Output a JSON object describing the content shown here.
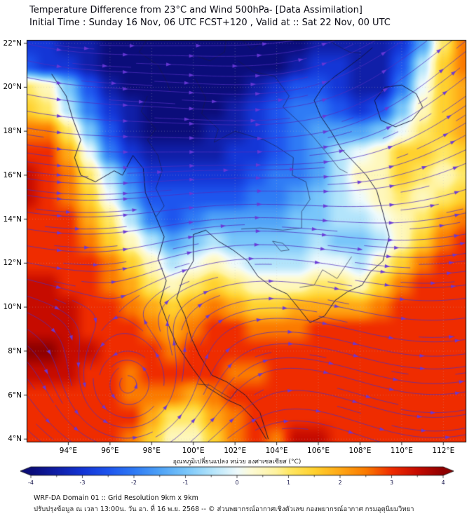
{
  "header": {
    "title_line1": "Temperature Difference from 23°C and Wind 500hPa- [Data Assimilation]",
    "title_line2": "Initial Time : Sunday 16 Nov, 06 UTC FCST+120 , Valid at ::  Sat 22 Nov, 00 UTC"
  },
  "map": {
    "lat_ticks": [
      {
        "label": "22°N",
        "value": 22
      },
      {
        "label": "20°N",
        "value": 20
      },
      {
        "label": "18°N",
        "value": 18
      },
      {
        "label": "16°N",
        "value": 16
      },
      {
        "label": "14°N",
        "value": 14
      },
      {
        "label": "12°N",
        "value": 12
      },
      {
        "label": "10°N",
        "value": 10
      },
      {
        "label": "8°N",
        "value": 8
      },
      {
        "label": "6°N",
        "value": 6
      },
      {
        "label": "4°N",
        "value": 4
      }
    ],
    "lon_ticks": [
      {
        "label": "94°E",
        "value": 94
      },
      {
        "label": "96°E",
        "value": 96
      },
      {
        "label": "98°E",
        "value": 98
      },
      {
        "label": "100°E",
        "value": 100
      },
      {
        "label": "102°E",
        "value": 102
      },
      {
        "label": "104°E",
        "value": 104
      },
      {
        "label": "106°E",
        "value": 106
      },
      {
        "label": "108°E",
        "value": 108
      },
      {
        "label": "110°E",
        "value": 110
      },
      {
        "label": "112°E",
        "value": 112
      }
    ]
  },
  "colorbar": {
    "label": "อุณหภูมิเปลี่ยนแปลง หน่วย องศาเซลเซียส (°C)",
    "tick_values": [
      -4,
      -3,
      -2,
      -1,
      0,
      1,
      2,
      3,
      4
    ],
    "tick_labels": [
      "-4",
      "-3",
      "-2",
      "-1",
      "0",
      "1",
      "2",
      "3",
      "4"
    ],
    "min": -4,
    "max": 4
  },
  "footer": {
    "line1": "WRF-DA Domain 01 :: Grid Resolution 9km x 9km",
    "line2": "ปรับปรุงข้อมูล ณ เวลา 13:00น. วัน อา. ที่ 16 พ.ย. 2568 -- © ส่วนพยากรณ์อากาศเชิงตัวเลข กองพยากรณ์อากาศ กรมอุตุนิยมวิทยา"
  },
  "chart_data": {
    "type": "heatmap",
    "title": "Temperature Difference from 23°C and Wind 500hPa [Data Assimilation]",
    "field_name": "temperature difference (°C)",
    "overlays": [
      "wind streamlines",
      "coastlines",
      "country borders"
    ],
    "value_range": [
      -4,
      4
    ],
    "lon_range": [
      92,
      113.1
    ],
    "lat_range": [
      3.85,
      22.15
    ],
    "colormap": [
      [
        -4,
        "#0b0d7a"
      ],
      [
        -3.5,
        "#101fa8"
      ],
      [
        -3,
        "#1436d6"
      ],
      [
        -2.5,
        "#1e55ee"
      ],
      [
        -2,
        "#2f7bf5"
      ],
      [
        -1.5,
        "#4fa3f7"
      ],
      [
        -1,
        "#79c6fa"
      ],
      [
        -0.5,
        "#b2e4fb"
      ],
      [
        0,
        "#eefafc"
      ],
      [
        0.25,
        "#fdfbd8"
      ],
      [
        0.75,
        "#fff3a0"
      ],
      [
        1,
        "#ffe866"
      ],
      [
        1.5,
        "#ffd12e"
      ],
      [
        2,
        "#ffa815"
      ],
      [
        2.5,
        "#fb7a00"
      ],
      [
        3,
        "#ef2c00"
      ],
      [
        3.5,
        "#c60b00"
      ],
      [
        4,
        "#8f0000"
      ]
    ],
    "grid": {
      "lons": [
        92,
        93,
        94,
        95,
        96,
        97,
        98,
        99,
        100,
        101,
        102,
        103,
        104,
        105,
        106,
        107,
        108,
        109,
        110,
        111,
        112,
        113
      ],
      "lats": [
        23,
        22,
        21,
        20,
        19,
        18,
        17,
        16,
        15,
        14,
        13,
        12,
        11,
        10,
        9,
        8,
        7,
        6,
        5,
        4,
        3
      ],
      "values": [
        [
          -3,
          -3,
          -3.5,
          -3.5,
          -4,
          -4,
          -4,
          -4,
          -4,
          -4,
          -4,
          -4,
          -4,
          -4,
          -3.5,
          -3.5,
          -3.5,
          -3.5,
          -3,
          -1.5,
          1,
          2.5
        ],
        [
          -3,
          -3,
          -3.5,
          -3.5,
          -4,
          -4,
          -4,
          -4,
          -4,
          -4,
          -4,
          -4,
          -4,
          -4,
          -3.5,
          -3.5,
          -3.5,
          -3.5,
          -3,
          -1.5,
          1,
          2.5
        ],
        [
          -2.5,
          -3,
          -3,
          -3.5,
          -4,
          -4,
          -4,
          -4,
          -4,
          -4,
          -4,
          -4,
          -4,
          -3.5,
          -3,
          -3,
          -3.5,
          -3.5,
          -2.5,
          -0.5,
          1.5,
          2.5
        ],
        [
          1,
          0.5,
          -1,
          -2.5,
          -3.5,
          -4,
          -4,
          -4,
          -4,
          -4,
          -4,
          -3.5,
          -3,
          -2.5,
          -2.5,
          -3,
          -3.5,
          -3.5,
          -2,
          0,
          1.5,
          2
        ],
        [
          1.5,
          1,
          -0.5,
          -2,
          -3,
          -3.5,
          -4,
          -4,
          -4,
          -4,
          -3.5,
          -3,
          -2.5,
          -2,
          -2,
          -2.5,
          -3,
          -2.5,
          -1,
          0.5,
          1.5,
          2
        ],
        [
          2.5,
          2.5,
          1,
          -1,
          -2.5,
          -3.5,
          -4,
          -4,
          -4,
          -3.5,
          -3.5,
          -3,
          -2.5,
          -2,
          -1.5,
          -1.5,
          -1.5,
          -1,
          0,
          1,
          1.5,
          2
        ],
        [
          3,
          3,
          2,
          0,
          -2,
          -3,
          -3.5,
          -3.5,
          -3.5,
          -3.5,
          -3,
          -3,
          -2.5,
          -2,
          -1.5,
          -0.5,
          0,
          0.5,
          1.5,
          1.5,
          1,
          1.5
        ],
        [
          3.5,
          3,
          2.5,
          1,
          -0.5,
          -2,
          -3,
          -3,
          -3,
          -3,
          -3,
          -2.5,
          -2,
          -2,
          -1.5,
          -0.5,
          0.5,
          0.5,
          1.5,
          1,
          0.5,
          1
        ],
        [
          3.5,
          3,
          2.5,
          1.5,
          0,
          -1.5,
          -2.5,
          -2.5,
          -2.5,
          -2.5,
          -2.5,
          -2,
          -2,
          -1.5,
          -1,
          -0.5,
          0,
          0.5,
          1,
          0.5,
          1,
          1.5
        ],
        [
          3,
          3,
          3,
          2,
          1,
          -0.5,
          -2,
          -2.5,
          -2,
          -1.5,
          -1.5,
          -1.5,
          -1.5,
          -1,
          -1,
          -0.5,
          -0.5,
          0,
          0.5,
          1,
          2,
          2.5
        ],
        [
          3,
          3,
          3,
          2.5,
          1.5,
          0.5,
          -0.5,
          -1.5,
          -1,
          -0.5,
          -1,
          -1,
          -1,
          -1,
          -0.5,
          -1,
          -1,
          -0.5,
          0.5,
          1.5,
          2.5,
          3
        ],
        [
          3,
          3,
          3,
          3,
          2.5,
          1.5,
          0.5,
          -0.5,
          0,
          0.5,
          0,
          -0.5,
          -0.5,
          -0.5,
          0,
          0,
          -0.5,
          0.5,
          1.5,
          2.5,
          3,
          3
        ],
        [
          3.5,
          3.5,
          3,
          3,
          2.5,
          2,
          1,
          0.5,
          1,
          1.5,
          1,
          0.5,
          0.5,
          0.5,
          1,
          1,
          0.5,
          1.5,
          2.5,
          3,
          3,
          3
        ],
        [
          3.5,
          3.5,
          3.5,
          3,
          3,
          2.5,
          2,
          1.5,
          2,
          2.5,
          2,
          1.5,
          1.5,
          2,
          2,
          2,
          2,
          2.5,
          3,
          3,
          3,
          3
        ],
        [
          3.5,
          3.5,
          3.5,
          3,
          3,
          3,
          2.5,
          2,
          2.5,
          3,
          3,
          2.5,
          2.5,
          2.5,
          3,
          3,
          3,
          3,
          3,
          3,
          3,
          3
        ],
        [
          4,
          4,
          3.5,
          3.5,
          3,
          3,
          3,
          2.5,
          3,
          3,
          3,
          3,
          3,
          3,
          3,
          3,
          3,
          3,
          3,
          3,
          3,
          3
        ],
        [
          3.5,
          3.5,
          3.5,
          3,
          3,
          2.5,
          3,
          3,
          3,
          3,
          2.5,
          2.5,
          3,
          3,
          3,
          3,
          3,
          3,
          3,
          3,
          3,
          3
        ],
        [
          3,
          3,
          3,
          3,
          3,
          2.5,
          2.5,
          2.5,
          2,
          2.5,
          3,
          3,
          3,
          3,
          3,
          3,
          3,
          3,
          3,
          3,
          3,
          3
        ],
        [
          3,
          3,
          3,
          3,
          3,
          3,
          2,
          1,
          1,
          2,
          2.5,
          3,
          3,
          3,
          3,
          3,
          3,
          3,
          3,
          3,
          3,
          3
        ],
        [
          3,
          3,
          3,
          3,
          3,
          2.5,
          1.5,
          0.5,
          0.5,
          1.5,
          2.5,
          3,
          2.5,
          3.5,
          3.5,
          3,
          3,
          3,
          3,
          3,
          3,
          3
        ],
        [
          3,
          3,
          3,
          3,
          3,
          2.5,
          1.5,
          0.5,
          0.5,
          1.5,
          2.5,
          3,
          2.5,
          3.5,
          3.5,
          3,
          3,
          3,
          3,
          3,
          3,
          3
        ]
      ]
    },
    "wind": {
      "description": "westerly flow with NE turning over the NE corner and a cyclonic vortex in the SW",
      "vortex_center": [
        96.9,
        6.4
      ],
      "vortex_strength": 1.0,
      "vortex_radius": 1.5,
      "base_speed": 0.5,
      "jet_boost": 0.7,
      "jet_center_lat": 15,
      "jet_width": 7,
      "wave_amp": 0.22,
      "wave_len": 2.8,
      "ne_turn_center": [
        110,
        20
      ],
      "ne_turn_strength": 0.85,
      "trough_center": [
        99,
        19.5
      ],
      "trough_strength": 0.3,
      "south_weaken_lat": 6
    },
    "coastlines": [
      [
        [
          93.2,
          20.6
        ],
        [
          93.9,
          19.6
        ],
        [
          94.2,
          18.6
        ],
        [
          94.6,
          17.6
        ],
        [
          94.3,
          16.8
        ],
        [
          94.6,
          16.0
        ],
        [
          95.3,
          15.7
        ],
        [
          96.2,
          16.2
        ],
        [
          96.6,
          16.0
        ],
        [
          97.1,
          16.9
        ],
        [
          97.6,
          16.3
        ],
        [
          97.7,
          15.2
        ],
        [
          98.2,
          14.1
        ],
        [
          98.6,
          13.2
        ],
        [
          98.3,
          12.2
        ],
        [
          98.7,
          11.2
        ],
        [
          98.4,
          10.2
        ],
        [
          98.8,
          9.2
        ],
        [
          99.2,
          8.3
        ],
        [
          99.9,
          7.3
        ],
        [
          100.6,
          6.4
        ],
        [
          101.6,
          5.8
        ],
        [
          102.3,
          5.5
        ],
        [
          103.0,
          4.8
        ],
        [
          103.5,
          4.0
        ]
      ],
      [
        [
          103.6,
          4.0
        ],
        [
          103.2,
          5.2
        ],
        [
          102.5,
          6.0
        ],
        [
          101.6,
          6.6
        ],
        [
          100.9,
          6.9
        ],
        [
          100.3,
          7.8
        ],
        [
          99.9,
          8.6
        ],
        [
          99.6,
          9.6
        ],
        [
          99.2,
          10.4
        ],
        [
          99.5,
          11.3
        ],
        [
          100.0,
          12.1
        ],
        [
          100.0,
          13.3
        ],
        [
          100.6,
          13.5
        ],
        [
          101.2,
          13.0
        ],
        [
          101.9,
          12.6
        ],
        [
          102.6,
          12.1
        ],
        [
          103.1,
          11.4
        ],
        [
          103.8,
          10.9
        ],
        [
          104.5,
          10.6
        ],
        [
          105.1,
          9.9
        ],
        [
          105.6,
          9.3
        ],
        [
          106.3,
          9.6
        ],
        [
          106.8,
          10.3
        ],
        [
          107.4,
          10.7
        ],
        [
          108.1,
          11.0
        ],
        [
          108.5,
          11.6
        ],
        [
          109.1,
          12.1
        ],
        [
          109.4,
          13.2
        ],
        [
          109.1,
          14.3
        ],
        [
          108.8,
          15.3
        ],
        [
          108.3,
          16.0
        ],
        [
          107.7,
          16.6
        ],
        [
          107.1,
          17.2
        ],
        [
          106.6,
          18.0
        ],
        [
          106.1,
          18.7
        ],
        [
          105.8,
          19.4
        ],
        [
          106.2,
          20.0
        ],
        [
          106.8,
          20.5
        ],
        [
          107.4,
          20.9
        ],
        [
          108.1,
          21.4
        ],
        [
          108.6,
          21.8
        ]
      ],
      [
        [
          108.7,
          19.4
        ],
        [
          109.2,
          20.0
        ],
        [
          110.0,
          20.1
        ],
        [
          110.7,
          19.7
        ],
        [
          111.0,
          19.1
        ],
        [
          110.5,
          18.5
        ],
        [
          109.7,
          18.2
        ],
        [
          109.0,
          18.5
        ],
        [
          108.7,
          19.4
        ]
      ]
    ],
    "borders": [
      [
        [
          97.8,
          19.6
        ],
        [
          97.5,
          18.9
        ],
        [
          98.2,
          18.1
        ],
        [
          97.8,
          17.6
        ],
        [
          98.3,
          16.9
        ],
        [
          98.5,
          16.2
        ],
        [
          98.2,
          15.4
        ],
        [
          98.6,
          14.6
        ],
        [
          98.2,
          14.1
        ]
      ],
      [
        [
          100.1,
          20.4
        ],
        [
          100.6,
          19.5
        ],
        [
          100.4,
          18.8
        ],
        [
          101.2,
          18.1
        ],
        [
          101.0,
          17.5
        ],
        [
          102.0,
          18.0
        ],
        [
          102.7,
          17.8
        ],
        [
          103.4,
          17.6
        ],
        [
          104.0,
          17.3
        ],
        [
          104.8,
          16.8
        ],
        [
          104.75,
          16.0
        ],
        [
          105.4,
          15.7
        ],
        [
          105.6,
          14.9
        ],
        [
          105.2,
          14.35
        ]
      ],
      [
        [
          102.3,
          13.55
        ],
        [
          103.2,
          13.6
        ],
        [
          104.3,
          13.5
        ],
        [
          105.2,
          13.6
        ],
        [
          105.2,
          14.35
        ]
      ],
      [
        [
          102.15,
          21.2
        ],
        [
          102.9,
          20.7
        ],
        [
          103.9,
          20.5
        ],
        [
          104.6,
          19.6
        ],
        [
          104.3,
          19.1
        ],
        [
          105.1,
          18.4
        ],
        [
          105.8,
          17.7
        ],
        [
          106.5,
          16.9
        ],
        [
          107.0,
          16.3
        ],
        [
          107.4,
          16.1
        ]
      ],
      [
        [
          102.1,
          22.4
        ],
        [
          102.8,
          21.7
        ],
        [
          103.9,
          22.5
        ],
        [
          104.8,
          22.8
        ],
        [
          105.9,
          22.9
        ],
        [
          106.7,
          22.0
        ],
        [
          107.5,
          21.6
        ],
        [
          108.05,
          21.55
        ]
      ],
      [
        [
          100.2,
          21.4
        ],
        [
          100.8,
          21.2
        ],
        [
          101.5,
          21.6
        ],
        [
          101.6,
          22.4
        ]
      ],
      [
        [
          100.2,
          6.5
        ],
        [
          100.8,
          6.45
        ],
        [
          101.1,
          6.25
        ],
        [
          101.8,
          5.85
        ],
        [
          102.1,
          6.25
        ]
      ],
      [
        [
          105.1,
          10.9
        ],
        [
          105.8,
          11.0
        ],
        [
          106.2,
          11.7
        ],
        [
          106.9,
          11.3
        ],
        [
          107.6,
          12.3
        ]
      ],
      [
        [
          97.6,
          23.0
        ],
        [
          97.8,
          22.2
        ],
        [
          97.4,
          21.6
        ],
        [
          98.3,
          21.0
        ],
        [
          98.7,
          20.3
        ],
        [
          98.9,
          19.8
        ]
      ],
      [
        [
          103.8,
          13.0
        ],
        [
          104.3,
          12.9
        ],
        [
          104.6,
          12.6
        ],
        [
          104.2,
          12.55
        ],
        [
          103.8,
          13.0
        ]
      ]
    ]
  }
}
